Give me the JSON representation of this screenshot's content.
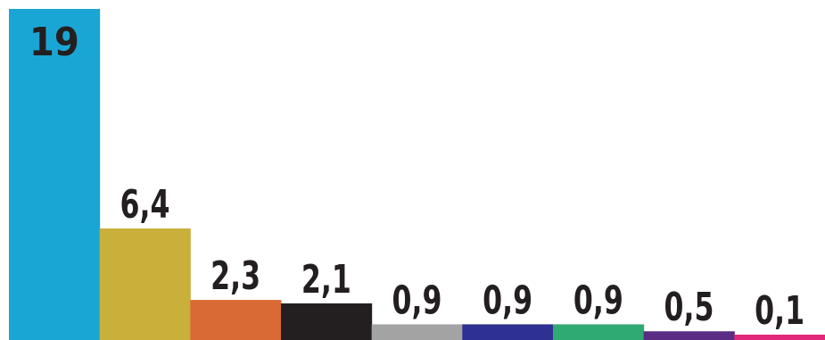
{
  "chart_data": {
    "type": "bar",
    "title": "",
    "xlabel": "",
    "ylabel": "",
    "ylim": [
      0,
      19
    ],
    "grid": false,
    "legend": "none",
    "categories": [
      "",
      "",
      "",
      "",
      "",
      "",
      "",
      "",
      ""
    ],
    "values": [
      19,
      6.4,
      2.3,
      2.1,
      0.9,
      0.9,
      0.9,
      0.5,
      0.1
    ],
    "value_labels": [
      "19",
      "6,4",
      "2,3",
      "2,1",
      "0,9",
      "0,9",
      "0,9",
      "0,5",
      "0,1"
    ],
    "colors": [
      "#1aa6d5",
      "#c9b03a",
      "#d96a35",
      "#231f20",
      "#a3a3a3",
      "#2e3192",
      "#2eaa72",
      "#5b2c83",
      "#e0297a"
    ]
  }
}
